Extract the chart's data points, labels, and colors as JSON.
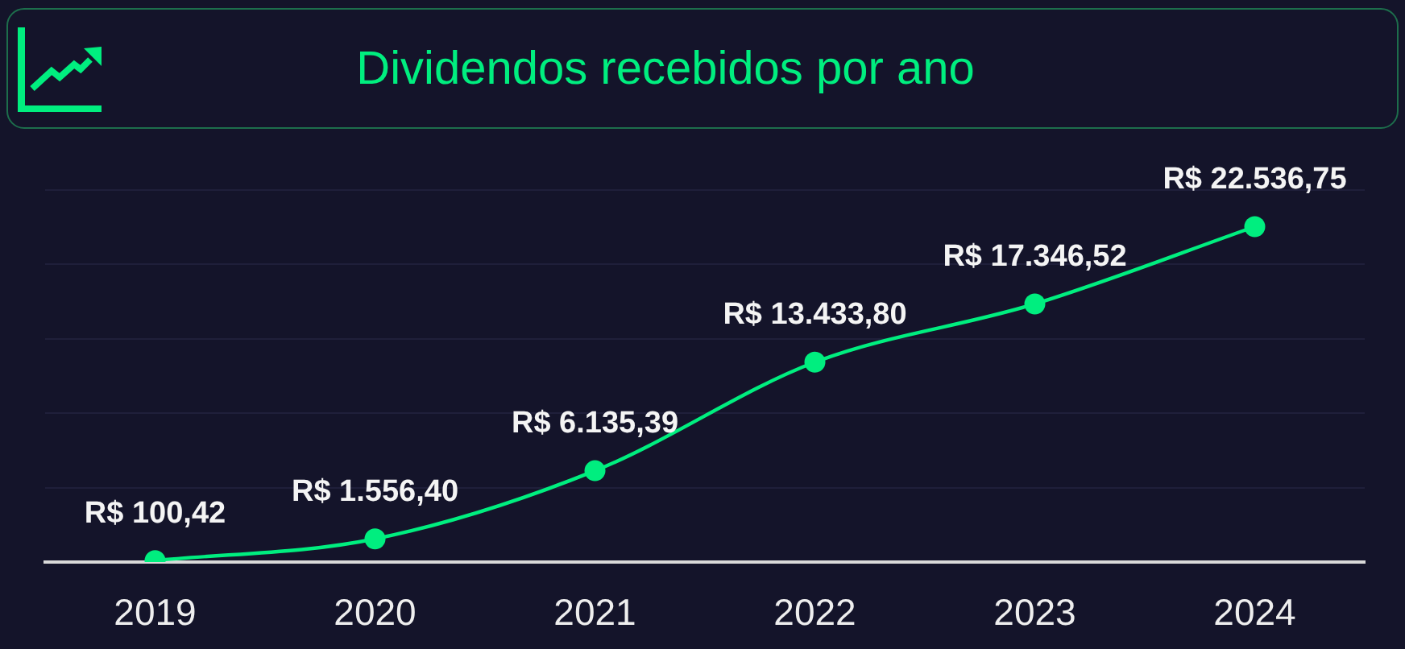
{
  "chart_data": {
    "type": "line",
    "title": "Dividendos recebidos por ano",
    "categories": [
      "2019",
      "2020",
      "2021",
      "2022",
      "2023",
      "2024"
    ],
    "series": [
      {
        "color": "#00ee7f",
        "values": [
          100.42,
          1556.4,
          6135.39,
          13433.8,
          17346.52,
          22536.75
        ],
        "value_labels": [
          "R$ 100,42",
          "R$ 1.556,40",
          "R$ 6.135,39",
          "R$ 13.433,80",
          "R$ 17.346,52",
          "R$ 22.536,75"
        ]
      }
    ],
    "ylim": [
      0,
      25000
    ],
    "yticks": [
      {
        "value": 0,
        "label": null
      },
      {
        "value": 5000,
        "label": null
      },
      {
        "value": 10000,
        "label": null
      },
      {
        "value": 15000,
        "label": null
      },
      {
        "value": 20000,
        "label": null
      },
      {
        "value": 25000,
        "label": null
      }
    ],
    "grid": "y",
    "tick_labels": "x",
    "marker": "circle",
    "line_style": "solid"
  }
}
